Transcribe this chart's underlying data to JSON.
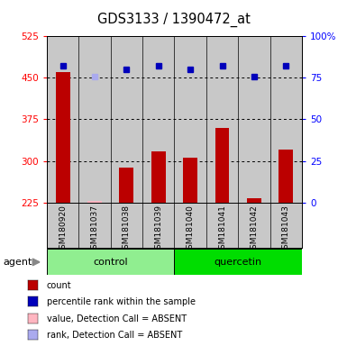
{
  "title": "GDS3133 / 1390472_at",
  "samples": [
    "GSM180920",
    "GSM181037",
    "GSM181038",
    "GSM181039",
    "GSM181040",
    "GSM181041",
    "GSM181042",
    "GSM181043"
  ],
  "counts": [
    460,
    228,
    288,
    318,
    306,
    360,
    232,
    320
  ],
  "ranks": [
    82,
    76,
    80,
    82,
    80,
    82,
    76,
    82
  ],
  "absent_mask": [
    false,
    true,
    false,
    false,
    false,
    false,
    false,
    false
  ],
  "groups": [
    "control",
    "control",
    "control",
    "control",
    "quercetin",
    "quercetin",
    "quercetin",
    "quercetin"
  ],
  "control_color_light": "#AAFFAA",
  "control_color": "#90EE90",
  "quercetin_color": "#00DD00",
  "ylim_left": [
    225,
    525
  ],
  "ylim_right": [
    0,
    100
  ],
  "yticks_left": [
    225,
    300,
    375,
    450,
    525
  ],
  "yticks_right": [
    0,
    25,
    50,
    75,
    100
  ],
  "bar_color": "#BB0000",
  "bar_color_absent": "#FFB6C1",
  "rank_color": "#0000BB",
  "rank_color_absent": "#AAAAEE",
  "col_bg_color": "#C8C8C8",
  "plot_bg_color": "#FFFFFF",
  "grid_dotted_levels": [
    300,
    375,
    450
  ],
  "legend_items": [
    {
      "label": "count",
      "color": "#BB0000"
    },
    {
      "label": "percentile rank within the sample",
      "color": "#0000BB"
    },
    {
      "label": "value, Detection Call = ABSENT",
      "color": "#FFB6C1"
    },
    {
      "label": "rank, Detection Call = ABSENT",
      "color": "#AAAAEE"
    }
  ],
  "figsize": [
    3.85,
    3.84
  ],
  "dpi": 100
}
